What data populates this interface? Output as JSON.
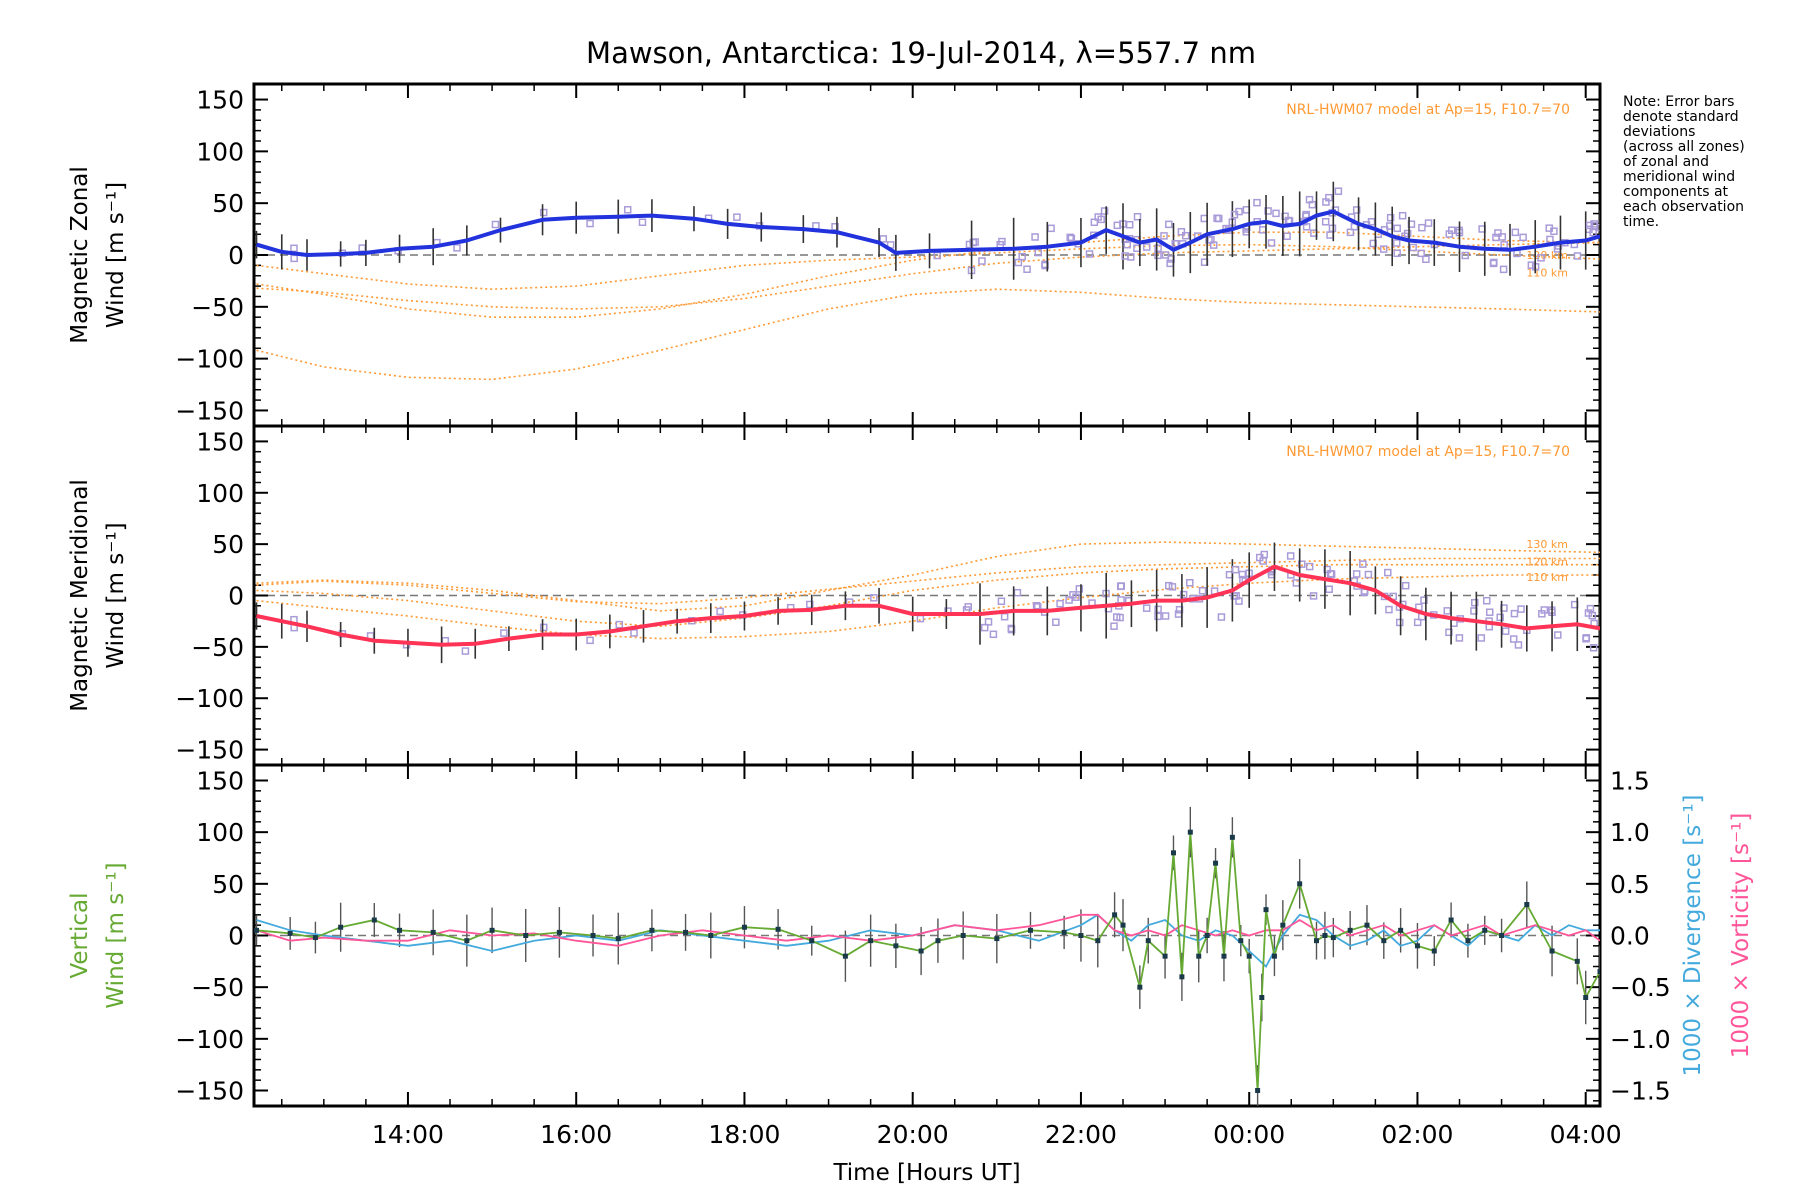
{
  "title": "Mawson, Antarctica: 19-Jul-2014, λ=557.7 nm",
  "note": [
    "Note: Error bars",
    "denote standard",
    "deviations",
    "(across all zones)",
    "of zonal and",
    "meridional wind",
    "components at",
    "each observation",
    "time."
  ],
  "colors": {
    "zonal": "#2233dd",
    "meridional": "#ff3355",
    "vertical": "#66aa33",
    "divergence": "#44aadd",
    "vorticity": "#ff5599",
    "model": "#ff9933",
    "scatter": "#a99bd8",
    "errbar": "#333333"
  },
  "chart_data": [
    {
      "type": "line",
      "panel": "zonal",
      "ylabel": [
        "Magnetic Zonal",
        "Wind [m s⁻¹]"
      ],
      "ylim": [
        -165,
        165
      ],
      "yticks": [
        150,
        100,
        50,
        0,
        -50,
        -100,
        -150
      ],
      "xlim": [
        12.17,
        28.17
      ],
      "model_label": "NRL-HWM07 model at Ap=15, F10.7=70",
      "altitude_labels": [
        {
          "text": "120 km",
          "y": 0
        },
        {
          "text": "110 km",
          "y": -17
        }
      ],
      "model_curves": [
        {
          "x": [
            12.2,
            13,
            14,
            15,
            16,
            17,
            18,
            19,
            20,
            21,
            22,
            23,
            24,
            25,
            26,
            27,
            28.2
          ],
          "y": [
            -10,
            -18,
            -28,
            -33,
            -30,
            -20,
            -10,
            -5,
            -2,
            2,
            6,
            9,
            10,
            8,
            4,
            0,
            -4
          ]
        },
        {
          "x": [
            12.2,
            13,
            14,
            15,
            16,
            17,
            18,
            19,
            20,
            21,
            22,
            23,
            24,
            25,
            26,
            27,
            28.2
          ],
          "y": [
            -28,
            -38,
            -52,
            -60,
            -60,
            -52,
            -38,
            -20,
            -5,
            5,
            12,
            18,
            22,
            22,
            18,
            14,
            12
          ]
        },
        {
          "x": [
            12.2,
            13,
            14,
            15,
            16,
            17,
            18,
            19,
            20,
            21,
            22,
            23,
            24,
            25,
            26,
            27,
            28.2
          ],
          "y": [
            -92,
            -108,
            -118,
            -120,
            -110,
            -92,
            -72,
            -52,
            -38,
            -33,
            -36,
            -42,
            -46,
            -48,
            -50,
            -52,
            -55
          ]
        },
        {
          "x": [
            12.2,
            13,
            14,
            15,
            16,
            17,
            18,
            19,
            20,
            21,
            22,
            23,
            24,
            25,
            26,
            27,
            28.2
          ],
          "y": [
            -32,
            -36,
            -44,
            -50,
            -52,
            -50,
            -42,
            -30,
            -18,
            -8,
            -2,
            2,
            4,
            6,
            8,
            10,
            12
          ]
        }
      ],
      "series": [
        {
          "name": "Zonal",
          "x": [
            12.2,
            12.5,
            12.8,
            13.2,
            13.5,
            13.9,
            14.3,
            14.7,
            15.1,
            15.6,
            16.0,
            16.5,
            16.9,
            17.4,
            17.8,
            18.2,
            18.7,
            19.1,
            19.6,
            19.8,
            20.2,
            20.7,
            21.2,
            21.6,
            22.0,
            22.3,
            22.5,
            22.7,
            22.9,
            23.1,
            23.3,
            23.5,
            23.8,
            24.0,
            24.2,
            24.4,
            24.6,
            24.8,
            25.0,
            25.3,
            25.5,
            25.7,
            25.9,
            26.2,
            26.5,
            26.8,
            27.1,
            27.4,
            27.7,
            28.0,
            28.17
          ],
          "y": [
            10,
            3,
            0,
            1,
            2,
            6,
            8,
            14,
            24,
            34,
            36,
            37,
            38,
            35,
            30,
            27,
            25,
            22,
            12,
            2,
            4,
            5,
            6,
            8,
            12,
            24,
            18,
            12,
            15,
            5,
            12,
            20,
            25,
            30,
            32,
            28,
            30,
            38,
            42,
            30,
            25,
            18,
            14,
            12,
            8,
            6,
            5,
            8,
            12,
            14,
            18
          ]
        }
      ]
    },
    {
      "type": "line",
      "panel": "meridional",
      "ylabel": [
        "Magnetic Meridional",
        "Wind [m s⁻¹]"
      ],
      "ylim": [
        -165,
        165
      ],
      "yticks": [
        150,
        100,
        50,
        0,
        -50,
        -100,
        -150
      ],
      "xlim": [
        12.17,
        28.17
      ],
      "model_label": "NRL-HWM07 model at Ap=15, F10.7=70",
      "altitude_labels": [
        {
          "text": "130 km",
          "y": 50
        },
        {
          "text": "120 km",
          "y": 33
        },
        {
          "text": "110 km",
          "y": 18
        }
      ],
      "model_curves": [
        {
          "x": [
            12.2,
            13,
            14,
            15,
            16,
            17,
            18,
            19,
            20,
            21,
            22,
            23,
            24,
            25,
            26,
            27,
            28.2
          ],
          "y": [
            12,
            15,
            12,
            5,
            -5,
            -15,
            -10,
            5,
            20,
            38,
            50,
            52,
            50,
            48,
            46,
            44,
            42
          ]
        },
        {
          "x": [
            12.2,
            13,
            14,
            15,
            16,
            17,
            18,
            19,
            20,
            21,
            22,
            23,
            24,
            25,
            26,
            27,
            28.2
          ],
          "y": [
            5,
            2,
            -5,
            -15,
            -25,
            -30,
            -22,
            -10,
            5,
            15,
            22,
            26,
            28,
            30,
            30,
            30,
            30
          ]
        },
        {
          "x": [
            12.2,
            13,
            14,
            15,
            16,
            17,
            18,
            19,
            20,
            21,
            22,
            23,
            24,
            25,
            26,
            27,
            28.2
          ],
          "y": [
            -5,
            -12,
            -20,
            -30,
            -38,
            -42,
            -40,
            -35,
            -25,
            -12,
            -2,
            6,
            12,
            16,
            18,
            20,
            20
          ]
        },
        {
          "x": [
            12.2,
            13,
            14,
            15,
            16,
            17,
            18,
            19,
            20,
            21,
            22,
            23,
            24,
            25,
            26,
            27,
            28.2
          ],
          "y": [
            10,
            14,
            10,
            2,
            -6,
            -8,
            -2,
            6,
            14,
            22,
            28,
            30,
            32,
            34,
            36,
            36,
            36
          ]
        }
      ],
      "series": [
        {
          "name": "Meridional",
          "x": [
            12.2,
            12.5,
            12.8,
            13.2,
            13.6,
            14.0,
            14.4,
            14.8,
            15.2,
            15.6,
            16.0,
            16.4,
            16.8,
            17.2,
            17.6,
            18.0,
            18.4,
            18.8,
            19.2,
            19.6,
            20.0,
            20.4,
            20.8,
            21.2,
            21.6,
            22.0,
            22.3,
            22.6,
            22.9,
            23.2,
            23.5,
            23.8,
            24.0,
            24.3,
            24.6,
            24.9,
            25.2,
            25.5,
            25.8,
            26.1,
            26.4,
            26.7,
            27.0,
            27.3,
            27.6,
            27.9,
            28.17
          ],
          "y": [
            -20,
            -25,
            -30,
            -38,
            -44,
            -46,
            -48,
            -47,
            -42,
            -38,
            -38,
            -35,
            -30,
            -25,
            -22,
            -20,
            -15,
            -14,
            -10,
            -10,
            -18,
            -18,
            -18,
            -15,
            -15,
            -12,
            -10,
            -8,
            -5,
            -5,
            -2,
            5,
            15,
            28,
            20,
            16,
            12,
            5,
            -10,
            -18,
            -22,
            -25,
            -28,
            -32,
            -30,
            -28,
            -32
          ]
        }
      ]
    },
    {
      "type": "line",
      "panel": "vertical",
      "ylabel": [
        "Vertical",
        "Wind [m s⁻¹]"
      ],
      "ylim": [
        -165,
        165
      ],
      "yticks": [
        150,
        100,
        50,
        0,
        -50,
        -100,
        -150
      ],
      "y2label": [
        "1000 × Divergence [s⁻¹]",
        "1000 × Vorticity [s⁻¹]"
      ],
      "y2lim": [
        -1.65,
        1.65
      ],
      "y2ticks": [
        "1.5",
        "1.0",
        "0.5",
        "0.0",
        "−0.5",
        "−1.0",
        "−1.5"
      ],
      "xlim": [
        12.17,
        28.17
      ],
      "xlabel": "Time [Hours UT]",
      "xticks": [
        {
          "v": 14,
          "label": "14:00"
        },
        {
          "v": 16,
          "label": "16:00"
        },
        {
          "v": 18,
          "label": "18:00"
        },
        {
          "v": 20,
          "label": "20:00"
        },
        {
          "v": 22,
          "label": "22:00"
        },
        {
          "v": 24,
          "label": "00:00"
        },
        {
          "v": 26,
          "label": "02:00"
        },
        {
          "v": 28,
          "label": "04:00"
        }
      ],
      "series": [
        {
          "name": "Vertical",
          "x": [
            12.2,
            12.6,
            12.9,
            13.2,
            13.6,
            13.9,
            14.3,
            14.7,
            15.0,
            15.4,
            15.8,
            16.2,
            16.5,
            16.9,
            17.3,
            17.6,
            18.0,
            18.4,
            18.8,
            19.2,
            19.5,
            19.8,
            20.1,
            20.3,
            20.6,
            21.0,
            21.4,
            21.8,
            22.0,
            22.2,
            22.4,
            22.5,
            22.7,
            22.8,
            23.0,
            23.1,
            23.2,
            23.3,
            23.4,
            23.5,
            23.6,
            23.7,
            23.8,
            23.9,
            24.0,
            24.1,
            24.15,
            24.2,
            24.3,
            24.4,
            24.6,
            24.8,
            24.9,
            25.0,
            25.2,
            25.4,
            25.6,
            25.8,
            26.0,
            26.2,
            26.4,
            26.6,
            26.8,
            27.0,
            27.3,
            27.6,
            27.9,
            28.0,
            28.17
          ],
          "y": [
            5,
            2,
            -2,
            8,
            15,
            5,
            3,
            -5,
            5,
            0,
            3,
            0,
            -3,
            5,
            3,
            0,
            8,
            6,
            -5,
            -20,
            -5,
            -10,
            -15,
            -5,
            0,
            -3,
            5,
            3,
            0,
            -5,
            20,
            10,
            -50,
            -5,
            -20,
            80,
            -40,
            100,
            -20,
            0,
            70,
            -20,
            95,
            -5,
            -20,
            -150,
            -60,
            25,
            -20,
            10,
            50,
            -5,
            0,
            -2,
            5,
            10,
            -5,
            5,
            -10,
            -15,
            15,
            -5,
            5,
            0,
            30,
            -15,
            -25,
            -60,
            -35
          ]
        },
        {
          "name": "Divergence",
          "x": [
            12.2,
            12.6,
            13.0,
            13.5,
            14.0,
            14.5,
            15.0,
            15.5,
            16.0,
            16.5,
            17.0,
            17.5,
            18.0,
            18.5,
            19.0,
            19.5,
            20.0,
            20.5,
            21.0,
            21.5,
            22.0,
            22.2,
            22.4,
            22.6,
            22.8,
            23.0,
            23.2,
            23.4,
            23.6,
            23.8,
            24.0,
            24.2,
            24.4,
            24.6,
            24.8,
            25.0,
            25.2,
            25.4,
            25.6,
            25.8,
            26.0,
            26.2,
            26.4,
            26.6,
            26.8,
            27.0,
            27.2,
            27.4,
            27.6,
            27.8,
            28.0,
            28.17
          ],
          "y": [
            0.15,
            0.05,
            0.0,
            -0.05,
            -0.1,
            -0.05,
            -0.15,
            -0.05,
            0.0,
            -0.05,
            0.05,
            0.0,
            -0.05,
            -0.1,
            -0.05,
            0.05,
            0.0,
            0.1,
            0.05,
            -0.05,
            0.1,
            0.2,
            0.05,
            -0.05,
            0.1,
            0.15,
            0.0,
            -0.05,
            0.05,
            0.0,
            -0.15,
            -0.3,
            0.0,
            0.2,
            0.15,
            0.0,
            -0.1,
            -0.05,
            0.05,
            -0.1,
            -0.05,
            0.1,
            0.0,
            -0.1,
            0.05,
            0.0,
            -0.05,
            0.1,
            0.0,
            0.1,
            0.05,
            0.05
          ]
        },
        {
          "name": "Vorticity",
          "x": [
            12.2,
            12.6,
            13.0,
            13.5,
            14.0,
            14.5,
            15.0,
            15.5,
            16.0,
            16.5,
            17.0,
            17.5,
            18.0,
            18.5,
            19.0,
            19.5,
            20.0,
            20.5,
            21.0,
            21.5,
            22.0,
            22.2,
            22.4,
            22.6,
            22.8,
            23.0,
            23.2,
            23.4,
            23.6,
            23.8,
            24.0,
            24.2,
            24.4,
            24.6,
            24.8,
            25.0,
            25.2,
            25.4,
            25.6,
            25.8,
            26.0,
            26.2,
            26.4,
            26.6,
            26.8,
            27.0,
            27.2,
            27.4,
            27.6,
            27.8,
            28.0,
            28.17
          ],
          "y": [
            0.05,
            -0.05,
            -0.02,
            -0.05,
            -0.05,
            0.05,
            0.0,
            0.02,
            -0.05,
            -0.1,
            0.0,
            0.05,
            0.0,
            -0.05,
            0.0,
            -0.05,
            0.0,
            0.1,
            0.05,
            0.1,
            0.2,
            0.2,
            0.05,
            0.0,
            0.05,
            0.0,
            0.1,
            0.05,
            0.0,
            0.05,
            0.0,
            0.05,
            0.05,
            0.15,
            0.05,
            0.1,
            0.0,
            0.05,
            0.1,
            0.0,
            0.05,
            0.1,
            0.0,
            0.05,
            0.1,
            0.0,
            0.05,
            0.1,
            0.05,
            0.0,
            0.05,
            -0.05
          ]
        }
      ]
    }
  ]
}
